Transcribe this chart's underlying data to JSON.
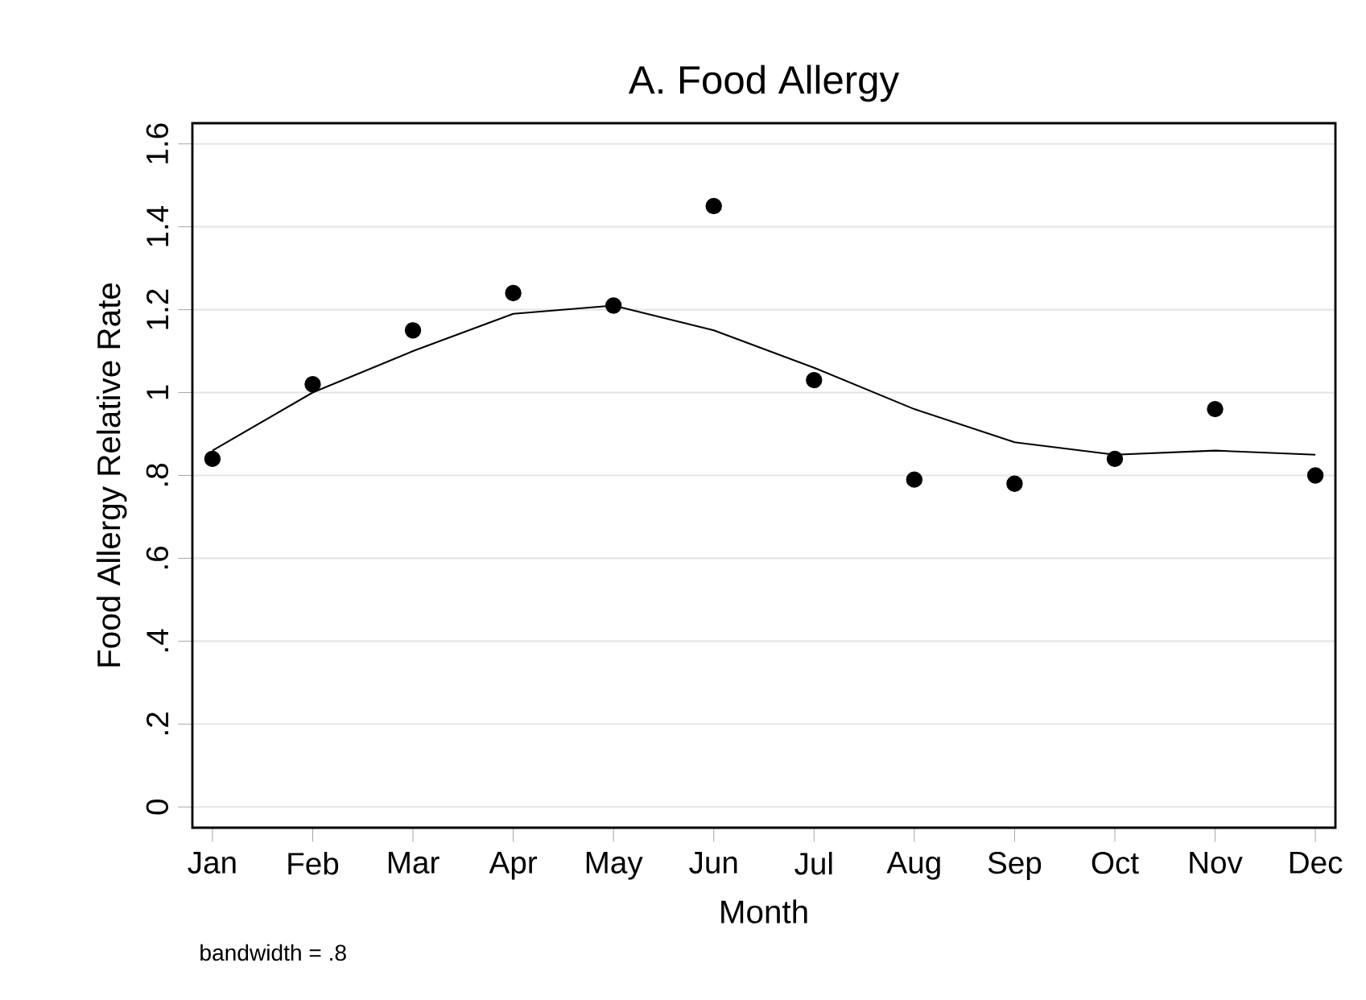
{
  "chart_data": {
    "type": "scatter",
    "title": "A. Food Allergy",
    "xlabel": "Month",
    "ylabel": "Food Allergy Relative Rate",
    "categories": [
      "Jan",
      "Feb",
      "Mar",
      "Apr",
      "May",
      "Jun",
      "Jul",
      "Aug",
      "Sep",
      "Oct",
      "Nov",
      "Dec"
    ],
    "series": [
      {
        "marker": "circle",
        "color": "#000000",
        "values": [
          0.84,
          1.02,
          1.15,
          1.24,
          1.21,
          1.45,
          1.03,
          0.79,
          0.78,
          0.84,
          0.96,
          0.8
        ]
      },
      {
        "type": "line",
        "marker": "none",
        "color": "#000000",
        "values": [
          0.86,
          1.0,
          1.1,
          1.19,
          1.21,
          1.15,
          1.06,
          0.96,
          0.88,
          0.85,
          0.86,
          0.85
        ]
      }
    ],
    "ylim": [
      -0.05,
      1.65
    ],
    "yticks": [
      0,
      {
        "value": 0.2,
        "label": ".2"
      },
      {
        "value": 0.4,
        "label": ".4"
      },
      {
        "value": 0.6,
        "label": ".6"
      },
      {
        "value": 0.8,
        "label": ".8"
      },
      1,
      1.2,
      1.4,
      1.6
    ],
    "grid": "y",
    "line_style": "solid",
    "annotations": [
      "bandwidth = .8"
    ]
  }
}
